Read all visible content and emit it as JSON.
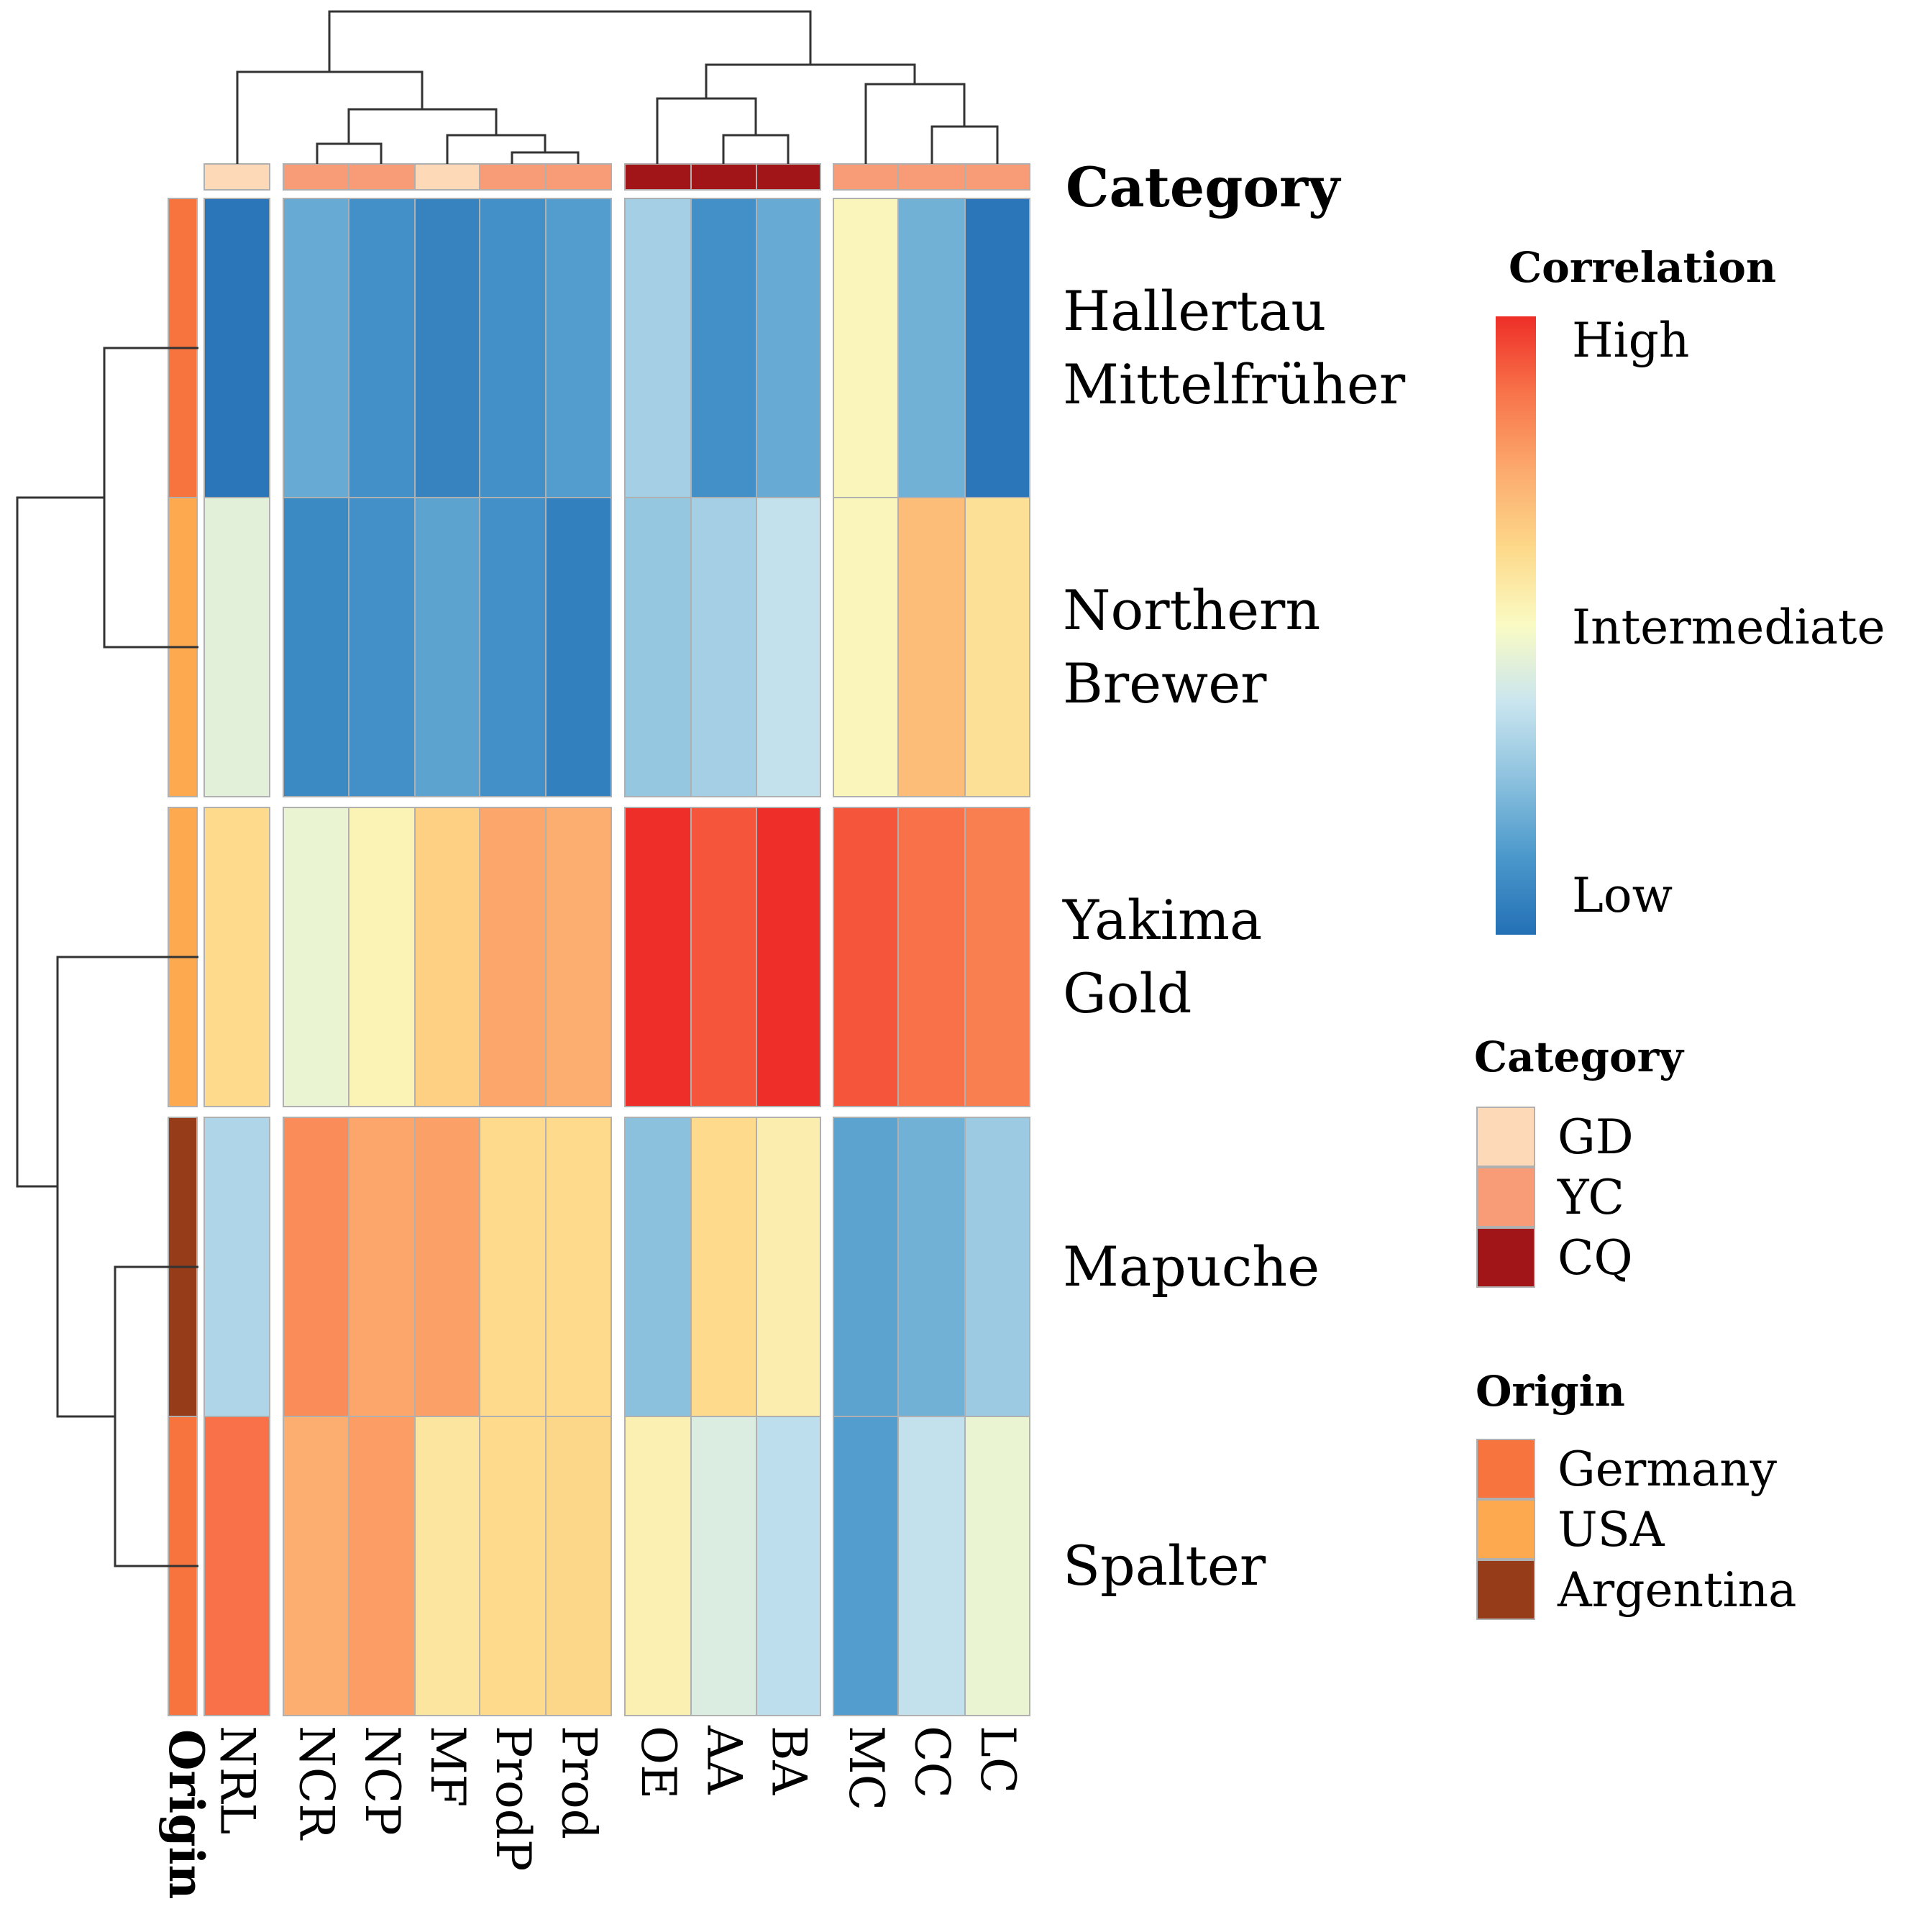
{
  "chart_data": {
    "type": "heatmap",
    "title": "",
    "rows": [
      "Hallertau Mittelfrüher",
      "Northern Brewer",
      "Yakima Gold",
      "Mapuche",
      "Spalter"
    ],
    "row_label_lines": [
      [
        "Hallertau",
        "Mittelfrüher"
      ],
      [
        "Northern",
        "Brewer"
      ],
      [
        "Yakima",
        "Gold"
      ],
      [
        "Mapuche"
      ],
      [
        "Spalter"
      ]
    ],
    "columns": [
      "NRL",
      "NCR",
      "NCP",
      "MF",
      "ProdP",
      "Prod",
      "OE",
      "AA",
      "BA",
      "MC",
      "CC",
      "LC"
    ],
    "column_groups": [
      [
        0
      ],
      [
        1,
        2,
        3,
        4,
        5
      ],
      [
        6,
        7,
        8
      ],
      [
        9,
        10,
        11
      ]
    ],
    "row_groups": [
      [
        0,
        1
      ],
      [
        2
      ],
      [
        3,
        4
      ]
    ],
    "values_scale": "correlation, 0 = Low, 0.5 = Intermediate, 1 = High",
    "values": [
      [
        0.02,
        0.18,
        0.1,
        0.06,
        0.1,
        0.14,
        0.3,
        0.1,
        0.18,
        0.52,
        0.2,
        0.02
      ],
      [
        0.44,
        0.08,
        0.1,
        0.16,
        0.1,
        0.05,
        0.27,
        0.3,
        0.36,
        0.52,
        0.7,
        0.6
      ],
      [
        0.62,
        0.46,
        0.53,
        0.65,
        0.76,
        0.74,
        1.0,
        0.93,
        1.0,
        0.93,
        0.88,
        0.85
      ],
      [
        0.32,
        0.82,
        0.76,
        0.77,
        0.62,
        0.62,
        0.25,
        0.62,
        0.55,
        0.16,
        0.2,
        0.28
      ],
      [
        0.88,
        0.74,
        0.78,
        0.58,
        0.62,
        0.63,
        0.54,
        0.42,
        0.35,
        0.14,
        0.36,
        0.46
      ]
    ],
    "column_category": [
      "GD",
      "YC",
      "YC",
      "GD",
      "YC",
      "YC",
      "CQ",
      "CQ",
      "CQ",
      "YC",
      "YC",
      "YC"
    ],
    "row_origin": [
      "Germany",
      "USA",
      "USA",
      "Argentina",
      "Germany"
    ],
    "annotation_labels": {
      "category": "Category",
      "origin": "Origin"
    },
    "legend": {
      "correlation": {
        "title": "Correlation",
        "high": "High",
        "intermediate": "Intermediate",
        "low": "Low"
      },
      "category": {
        "title": "Category",
        "items": [
          {
            "label": "GD",
            "color": "#fdd9b8"
          },
          {
            "label": "YC",
            "color": "#f89c78"
          },
          {
            "label": "CQ",
            "color": "#a11418"
          }
        ]
      },
      "origin": {
        "title": "Origin",
        "items": [
          {
            "label": "Germany",
            "color": "#f8743e"
          },
          {
            "label": "USA",
            "color": "#fca950"
          },
          {
            "label": "Argentina",
            "color": "#963c19"
          }
        ]
      }
    },
    "colormap": [
      "#2470b6",
      "#4a98cb",
      "#8cc1de",
      "#c9e5ef",
      "#fafbc4",
      "#fdd98a",
      "#fcaa6e",
      "#f8744a",
      "#ee2e28"
    ],
    "column_dendrogram": {
      "merges": [
        [
          1,
          2
        ],
        [
          4,
          5
        ],
        [
          3,
          "ProdP+Prod"
        ],
        [
          "NCR+NCP",
          "MF+ProdP+Prod"
        ],
        [
          0,
          "NCR..Prod"
        ],
        [
          7,
          8
        ],
        [
          6,
          "AA+BA"
        ],
        [
          10,
          11
        ],
        [
          9,
          "CC+LC"
        ],
        [
          "OE+AA+BA",
          "MC+CC+LC"
        ],
        [
          "NRL..Prod",
          "OE..LC"
        ]
      ]
    },
    "row_dendrogram": {
      "merges": [
        [
          0,
          1
        ],
        [
          3,
          4
        ],
        [
          2,
          "Mapuche+Spalter"
        ],
        [
          "Hallertau+Northern",
          "Yakima+Mapuche+Spalter"
        ]
      ]
    }
  }
}
